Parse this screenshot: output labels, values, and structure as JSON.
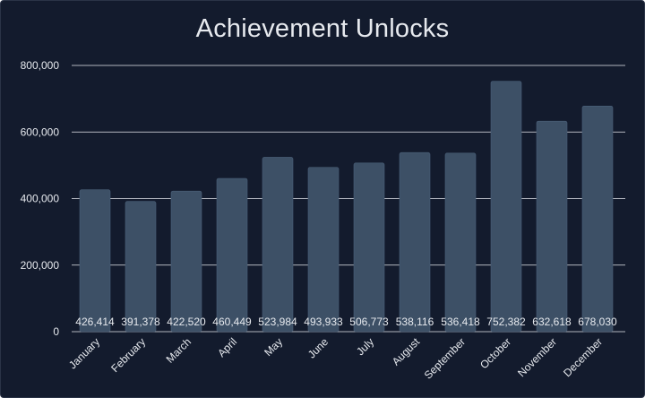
{
  "chart_data": {
    "type": "bar",
    "title": "Achievement Unlocks",
    "xlabel": "",
    "ylabel": "",
    "categories": [
      "January",
      "February",
      "March",
      "April",
      "May",
      "June",
      "July",
      "August",
      "September",
      "October",
      "November",
      "December"
    ],
    "values": [
      426414,
      391378,
      422520,
      460449,
      523984,
      493933,
      506773,
      538116,
      536418,
      752382,
      632618,
      678030
    ],
    "value_labels": [
      "426,414",
      "391,378",
      "422,520",
      "460,449",
      "523,984",
      "493,933",
      "506,773",
      "538,116",
      "536,418",
      "752,382",
      "632,618",
      "678,030"
    ],
    "ylim": [
      0,
      800000
    ],
    "y_ticks": [
      0,
      200000,
      400000,
      600000,
      800000
    ],
    "y_tick_labels": [
      "0",
      "200,000",
      "400,000",
      "600,000",
      "800,000"
    ],
    "grid": true,
    "legend": "none",
    "colors": {
      "background": "#131b2d",
      "bar": "#3d5066",
      "bar_stroke": "#4a5f78",
      "grid": "#e6e9ee",
      "text": "#e6e9ee"
    }
  }
}
